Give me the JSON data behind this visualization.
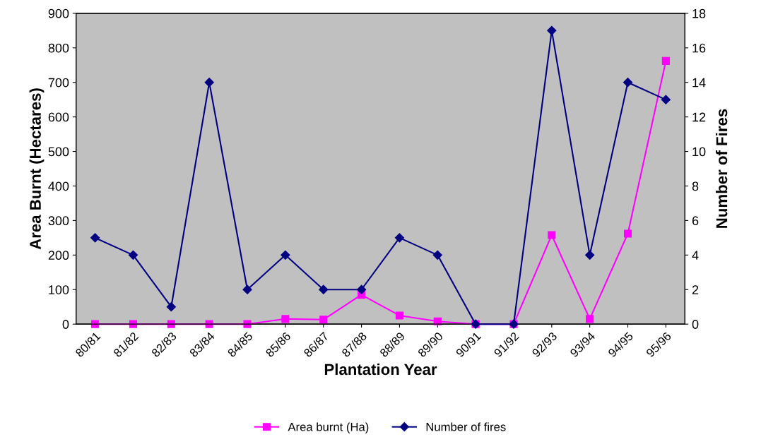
{
  "chart_data": {
    "type": "line",
    "xlabel": "Plantation Year",
    "ylabel": "Area Burnt (Hectares)",
    "y2label": "Number of Fires",
    "categories": [
      "80/81",
      "81/82",
      "82/83",
      "83/84",
      "84/85",
      "85/86",
      "86/87",
      "87/88",
      "88/89",
      "89/90",
      "90/91",
      "91/92",
      "92/93",
      "93/94",
      "94/95",
      "95/96"
    ],
    "series": [
      {
        "name": "Area burnt (Ha)",
        "color": "#ff00ff",
        "marker": "square",
        "values": [
          0,
          0,
          0,
          0,
          0,
          15,
          13,
          85,
          25,
          8,
          0,
          0,
          258,
          15,
          262,
          762
        ]
      },
      {
        "name": "Number of fires",
        "color": "#000080",
        "marker": "diamond",
        "axis": "y2",
        "values": [
          5,
          4,
          1,
          14,
          2,
          4,
          2,
          2,
          5,
          4,
          0,
          0,
          17,
          4,
          14,
          13
        ]
      }
    ],
    "ylim": [
      0,
      900
    ],
    "yticks": [
      0,
      100,
      200,
      300,
      400,
      500,
      600,
      700,
      800,
      900
    ],
    "y2lim": [
      0,
      18
    ],
    "y2ticks": [
      0,
      2,
      4,
      6,
      8,
      10,
      12,
      14,
      16,
      18
    ],
    "grid": false,
    "legend": "bottom"
  }
}
